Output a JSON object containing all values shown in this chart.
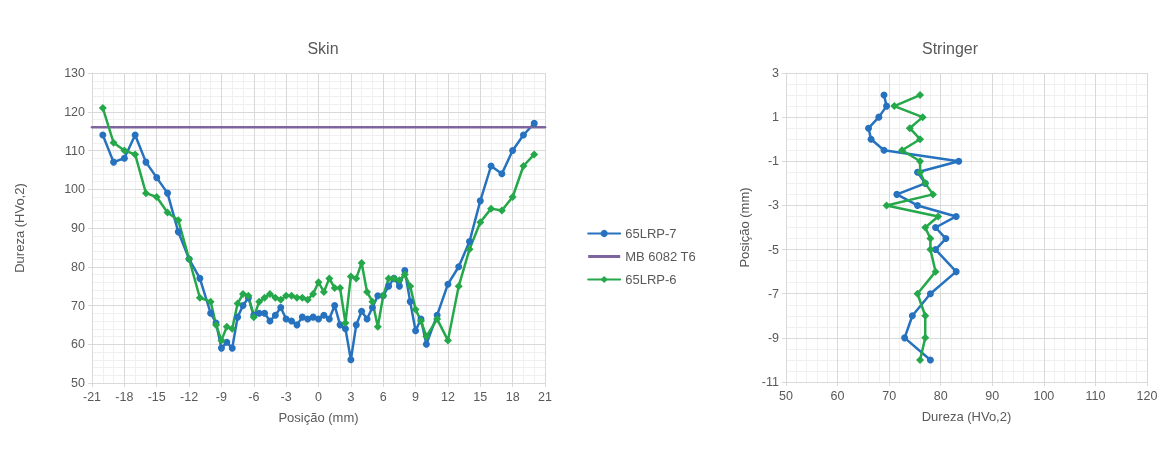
{
  "chart_data": [
    {
      "type": "line",
      "title": "Skin",
      "xlabel": "Posição (mm)",
      "ylabel": "Dureza (HVo,2)",
      "xlim": [
        -21,
        21
      ],
      "xticks": [
        -21,
        -18,
        -15,
        -12,
        -9,
        -6,
        -3,
        0,
        3,
        6,
        9,
        12,
        15,
        18,
        21
      ],
      "ylim": [
        50,
        130
      ],
      "yticks": [
        50,
        60,
        70,
        80,
        90,
        100,
        110,
        120,
        130
      ],
      "grid": true,
      "legend": "right",
      "series": [
        {
          "name": "65LRP-7",
          "color": "#2672be",
          "marker": "circle",
          "x": [
            -20,
            -19,
            -18,
            -17,
            -16,
            -15,
            -14,
            -13,
            -12,
            -11,
            -10,
            -9.5,
            -9,
            -8.5,
            -8,
            -7.5,
            -7,
            -6.5,
            -6,
            -5.5,
            -5,
            -4.5,
            -4,
            -3.5,
            -3,
            -2.5,
            -2,
            -1.5,
            -1,
            -0.5,
            0,
            0.5,
            1,
            1.5,
            2,
            2.5,
            3,
            3.5,
            4,
            4.5,
            5,
            5.5,
            6,
            6.5,
            7,
            7.5,
            8,
            8.5,
            9,
            9.5,
            10,
            11,
            12,
            13,
            14,
            15,
            16,
            17,
            18,
            19,
            20
          ],
          "values": [
            114,
            107,
            108,
            114,
            107,
            103,
            99,
            89,
            82,
            77,
            68,
            65.5,
            59,
            60.5,
            59,
            67,
            70,
            72,
            67.5,
            68,
            68,
            66,
            67.5,
            69.5,
            66.5,
            66,
            65,
            67,
            66.5,
            67,
            66.5,
            67.5,
            66.5,
            70,
            65,
            64,
            56,
            65,
            68.5,
            66.5,
            69.5,
            72.5,
            72.5,
            75,
            77,
            75,
            79,
            71,
            63.5,
            66.5,
            60,
            67.5,
            75.5,
            80,
            86.5,
            97,
            106,
            104,
            110,
            114,
            117
          ]
        },
        {
          "name": "MB 6082 T6",
          "color": "#7e649e",
          "marker": "none",
          "x": [
            -21,
            21
          ],
          "values": [
            116,
            116
          ]
        },
        {
          "name": "65LRP-6",
          "color": "#25a84a",
          "marker": "diamond",
          "x": [
            -20,
            -19,
            -18,
            -17,
            -16,
            -15,
            -14,
            -13,
            -12,
            -11,
            -10,
            -9.5,
            -9,
            -8.5,
            -8,
            -7.5,
            -7,
            -6.5,
            -6,
            -5.5,
            -5,
            -4.5,
            -4,
            -3.5,
            -3,
            -2.5,
            -2,
            -1.5,
            -1,
            -0.5,
            0,
            0.5,
            1,
            1.5,
            2,
            2.5,
            3,
            3.5,
            4,
            4.5,
            5,
            5.5,
            6,
            6.5,
            7,
            7.5,
            8,
            8.5,
            9,
            9.5,
            10,
            11,
            12,
            13,
            14,
            15,
            16,
            17,
            18,
            19,
            20
          ],
          "values": [
            121,
            112,
            110,
            109,
            99,
            98,
            94,
            92,
            82,
            72,
            71,
            65,
            61,
            64.5,
            64,
            70.5,
            73,
            72.5,
            67,
            71,
            72,
            73,
            72,
            71.5,
            72.5,
            72.5,
            72,
            72,
            71.5,
            73,
            76,
            73.5,
            77,
            74.5,
            74.5,
            65.5,
            77.5,
            77,
            81,
            73.5,
            71,
            64.5,
            72.5,
            77,
            77,
            76.5,
            78,
            75,
            69,
            66,
            62,
            66.5,
            61,
            75,
            84.5,
            91.5,
            95,
            94.5,
            98,
            106,
            109
          ]
        }
      ]
    },
    {
      "type": "line",
      "title": "Stringer",
      "xlabel": "Dureza (HVo,2)",
      "ylabel": "Posição (mm)",
      "xlim": [
        50,
        120
      ],
      "xticks": [
        50,
        60,
        70,
        80,
        90,
        100,
        110,
        120
      ],
      "ylim": [
        -11,
        3
      ],
      "yticks": [
        -11,
        -9,
        -7,
        -5,
        -3,
        -1,
        1,
        3
      ],
      "grid": true,
      "series": [
        {
          "color": "#2672be",
          "marker": "circle",
          "x": [
            69,
            69.5,
            68,
            66,
            66.5,
            69,
            83.5,
            75.5,
            77,
            71.5,
            75.5,
            83,
            79,
            81,
            79,
            83,
            78,
            74.5,
            73,
            78
          ],
          "values": [
            2,
            1.5,
            1,
            0.5,
            0,
            -0.5,
            -1,
            -1.5,
            -2,
            -2.5,
            -3,
            -3.5,
            -4,
            -4.5,
            -5,
            -6,
            -7,
            -8,
            -9,
            -10
          ]
        },
        {
          "color": "#25a84a",
          "marker": "diamond",
          "x": [
            76,
            71,
            76.5,
            74,
            76,
            72.5,
            76,
            76,
            77,
            78.5,
            69.5,
            79.5,
            77,
            78,
            78,
            79,
            75.5,
            77,
            77,
            76
          ],
          "values": [
            2,
            1.5,
            1,
            0.5,
            0,
            -0.5,
            -1,
            -1.5,
            -2,
            -2.5,
            -3,
            -3.5,
            -4,
            -4.5,
            -5,
            -6,
            -7,
            -8,
            -9,
            -10
          ]
        }
      ]
    }
  ]
}
